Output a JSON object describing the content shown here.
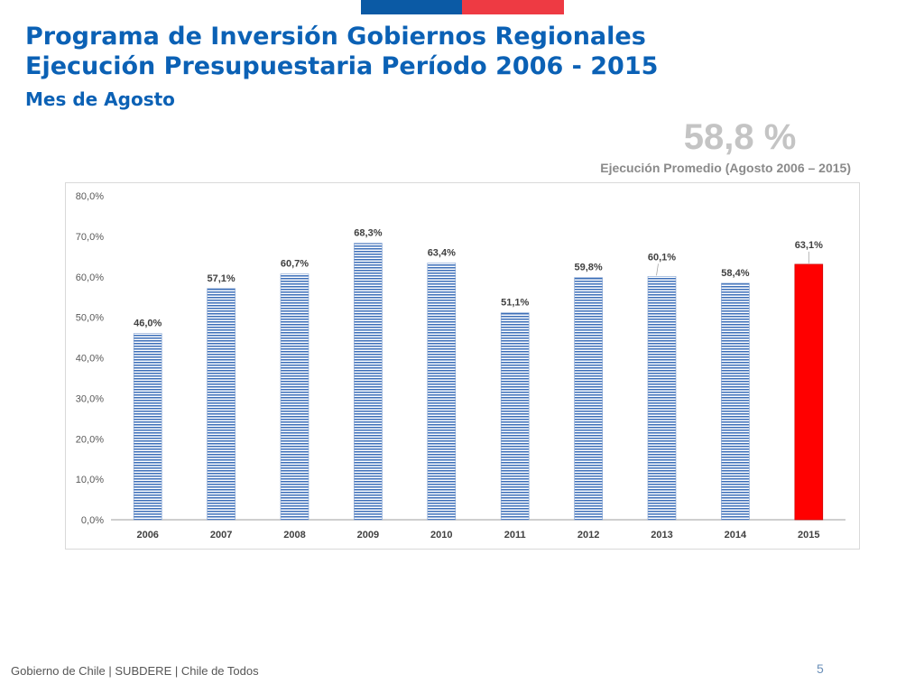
{
  "header": {
    "title_line1": "Programa de Inversión Gobiernos Regionales",
    "title_line2": "Ejecución Presupuestaria Período 2006 - 2015",
    "subtitle": "Mes de Agosto"
  },
  "highlight": {
    "value": "58,8 %",
    "caption": "Ejecución Promedio (Agosto 2006 – 2015)"
  },
  "footer": {
    "text": "Gobierno de Chile | SUBDERE | Chile de Todos",
    "page_number": "5"
  },
  "colors": {
    "title": "#0b61b5",
    "bar_pattern_light": "#ffffff",
    "bar_pattern_dark": "#3b6eb8",
    "highlight_bar": "#ff0000",
    "flag_blue": "#0b5aa5",
    "flag_red": "#ee3a43"
  },
  "chart_data": {
    "type": "bar",
    "title": "",
    "xlabel": "",
    "ylabel": "",
    "categories": [
      "2006",
      "2007",
      "2008",
      "2009",
      "2010",
      "2011",
      "2012",
      "2013",
      "2014",
      "2015"
    ],
    "values": [
      46.0,
      57.1,
      60.7,
      68.3,
      63.4,
      51.1,
      59.8,
      60.1,
      58.4,
      63.1
    ],
    "data_labels": [
      "46,0%",
      "57,1%",
      "60,7%",
      "68,3%",
      "63,4%",
      "51,1%",
      "59,8%",
      "60,1%",
      "58,4%",
      "63,1%"
    ],
    "highlight_category": "2015",
    "ylim": [
      0,
      80
    ],
    "yticks": [
      0,
      10,
      20,
      30,
      40,
      50,
      60,
      70,
      80
    ],
    "ytick_labels": [
      "0,0%",
      "10,0%",
      "20,0%",
      "30,0%",
      "40,0%",
      "50,0%",
      "60,0%",
      "70,0%",
      "80,0%"
    ],
    "grid": false,
    "legend": "none"
  }
}
